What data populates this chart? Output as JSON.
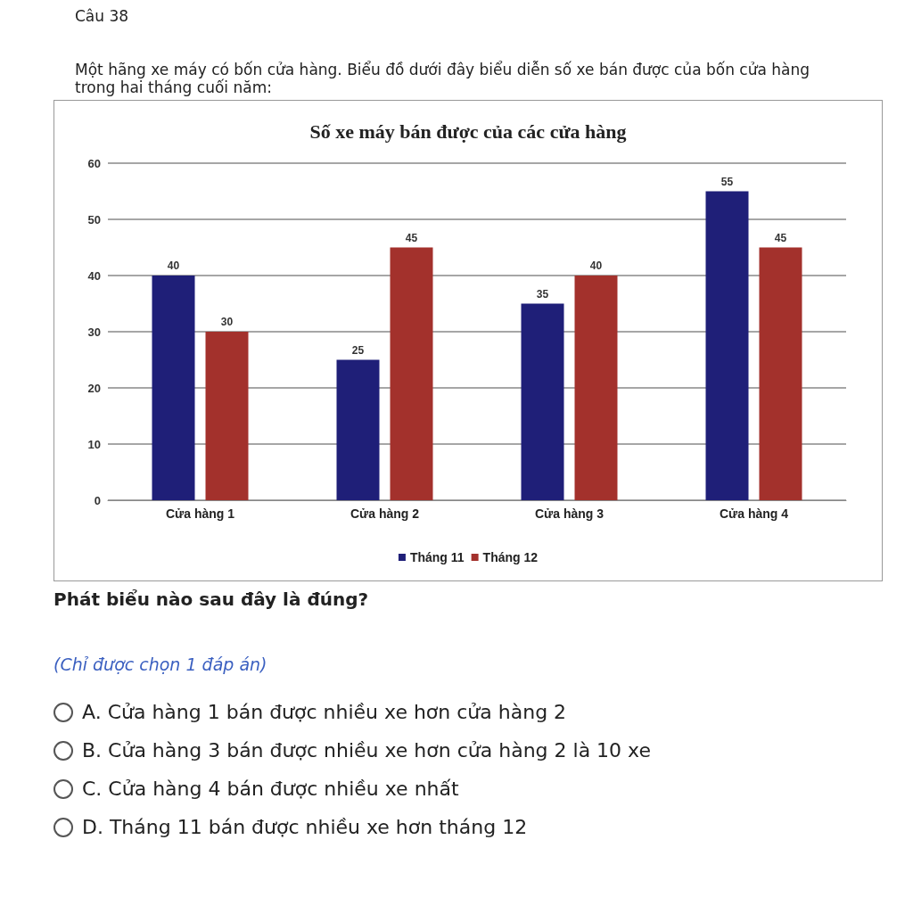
{
  "chart_data": {
    "type": "bar",
    "title": "Số xe máy bán được của các cửa hàng",
    "categories": [
      "Cửa hàng 1",
      "Cửa hàng 2",
      "Cửa hàng 3",
      "Cửa hàng 4"
    ],
    "series": [
      {
        "name": "Tháng 11",
        "color": "#1f1f78",
        "values": [
          40,
          25,
          35,
          55
        ]
      },
      {
        "name": "Tháng 12",
        "color": "#a3312c",
        "values": [
          30,
          45,
          40,
          45
        ]
      }
    ],
    "ylim": [
      0,
      60
    ],
    "yticks": [
      0,
      10,
      20,
      30,
      40,
      50,
      60
    ],
    "grid": "y",
    "legend": "bottom",
    "data_labels": true,
    "annotations": [
      "Câu 38",
      "Một hãng xe máy có bốn cửa hàng. Biểu đồ dưới đây biểu diễn số xe bán được của bốn cửa hàng trong hai tháng cuối năm:",
      "Phát biểu nào sau đây là đúng?",
      "(Chỉ được chọn 1 đáp án)",
      "A. Cửa hàng 1 bán được nhiều xe hơn cửa hàng 2",
      "B. Cửa hàng 3 bán được nhiều xe hơn cửa hàng 2 là 10 xe",
      "C. Cửa hàng 4 bán được nhiều xe nhất",
      "D. Tháng 11 bán được nhiều xe hơn tháng 12"
    ]
  }
}
